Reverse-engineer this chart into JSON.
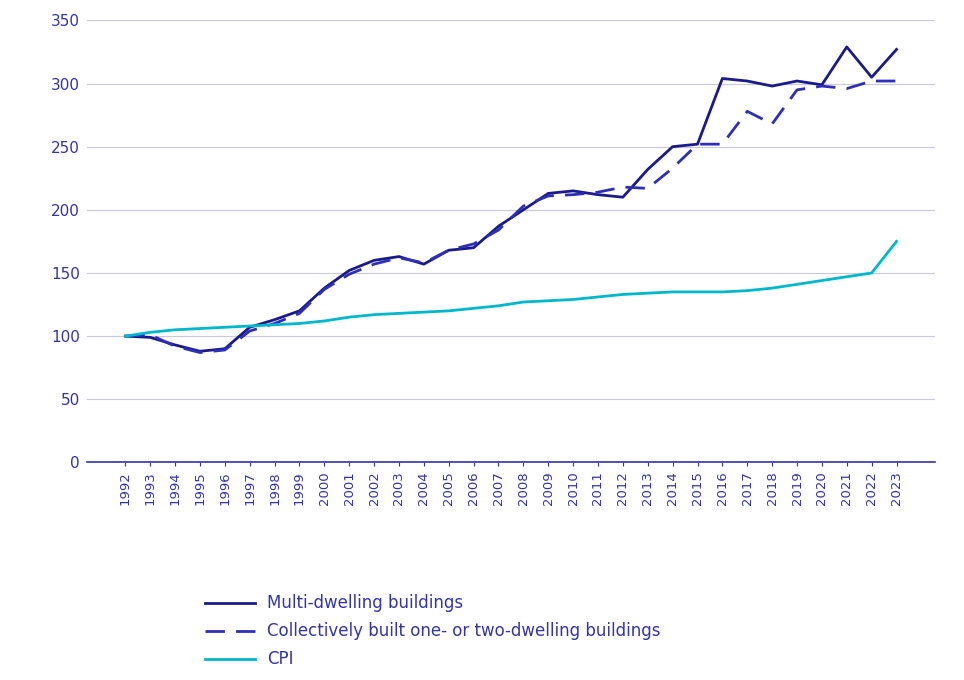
{
  "years": [
    1992,
    1993,
    1994,
    1995,
    1996,
    1997,
    1998,
    1999,
    2000,
    2001,
    2002,
    2003,
    2004,
    2005,
    2006,
    2007,
    2008,
    2009,
    2010,
    2011,
    2012,
    2013,
    2014,
    2015,
    2016,
    2017,
    2018,
    2019,
    2020,
    2021,
    2022,
    2023
  ],
  "multi_dwelling": [
    100,
    99,
    93,
    88,
    90,
    107,
    113,
    120,
    138,
    152,
    160,
    163,
    157,
    168,
    170,
    187,
    200,
    213,
    215,
    212,
    210,
    232,
    250,
    252,
    304,
    302,
    298,
    302,
    299,
    329,
    305,
    327
  ],
  "collectively_built": [
    100,
    101,
    92,
    87,
    89,
    104,
    110,
    118,
    137,
    149,
    157,
    162,
    158,
    168,
    173,
    184,
    203,
    211,
    212,
    214,
    218,
    217,
    233,
    252,
    252,
    278,
    268,
    295,
    298,
    296,
    302,
    302
  ],
  "cpi": [
    100,
    103,
    105,
    106,
    107,
    108,
    109,
    110,
    112,
    115,
    117,
    118,
    119,
    120,
    122,
    124,
    127,
    128,
    129,
    131,
    133,
    134,
    135,
    135,
    135,
    136,
    138,
    141,
    144,
    147,
    150,
    175
  ],
  "line_color_solid": "#1a1a8c",
  "line_color_dashed": "#2e2eb8",
  "line_color_cpi": "#00b8cc",
  "background_color": "#ffffff",
  "grid_color": "#c8c8e0",
  "tick_label_color": "#3333aa",
  "axis_color": "#3333aa",
  "ylim": [
    0,
    350
  ],
  "yticks": [
    0,
    50,
    100,
    150,
    200,
    250,
    300,
    350
  ],
  "legend_labels": [
    "Multi-dwelling buildings",
    "Collectively built one- or two-dwelling buildings",
    "CPI"
  ],
  "figsize": [
    9.64,
    6.8
  ],
  "dpi": 100
}
